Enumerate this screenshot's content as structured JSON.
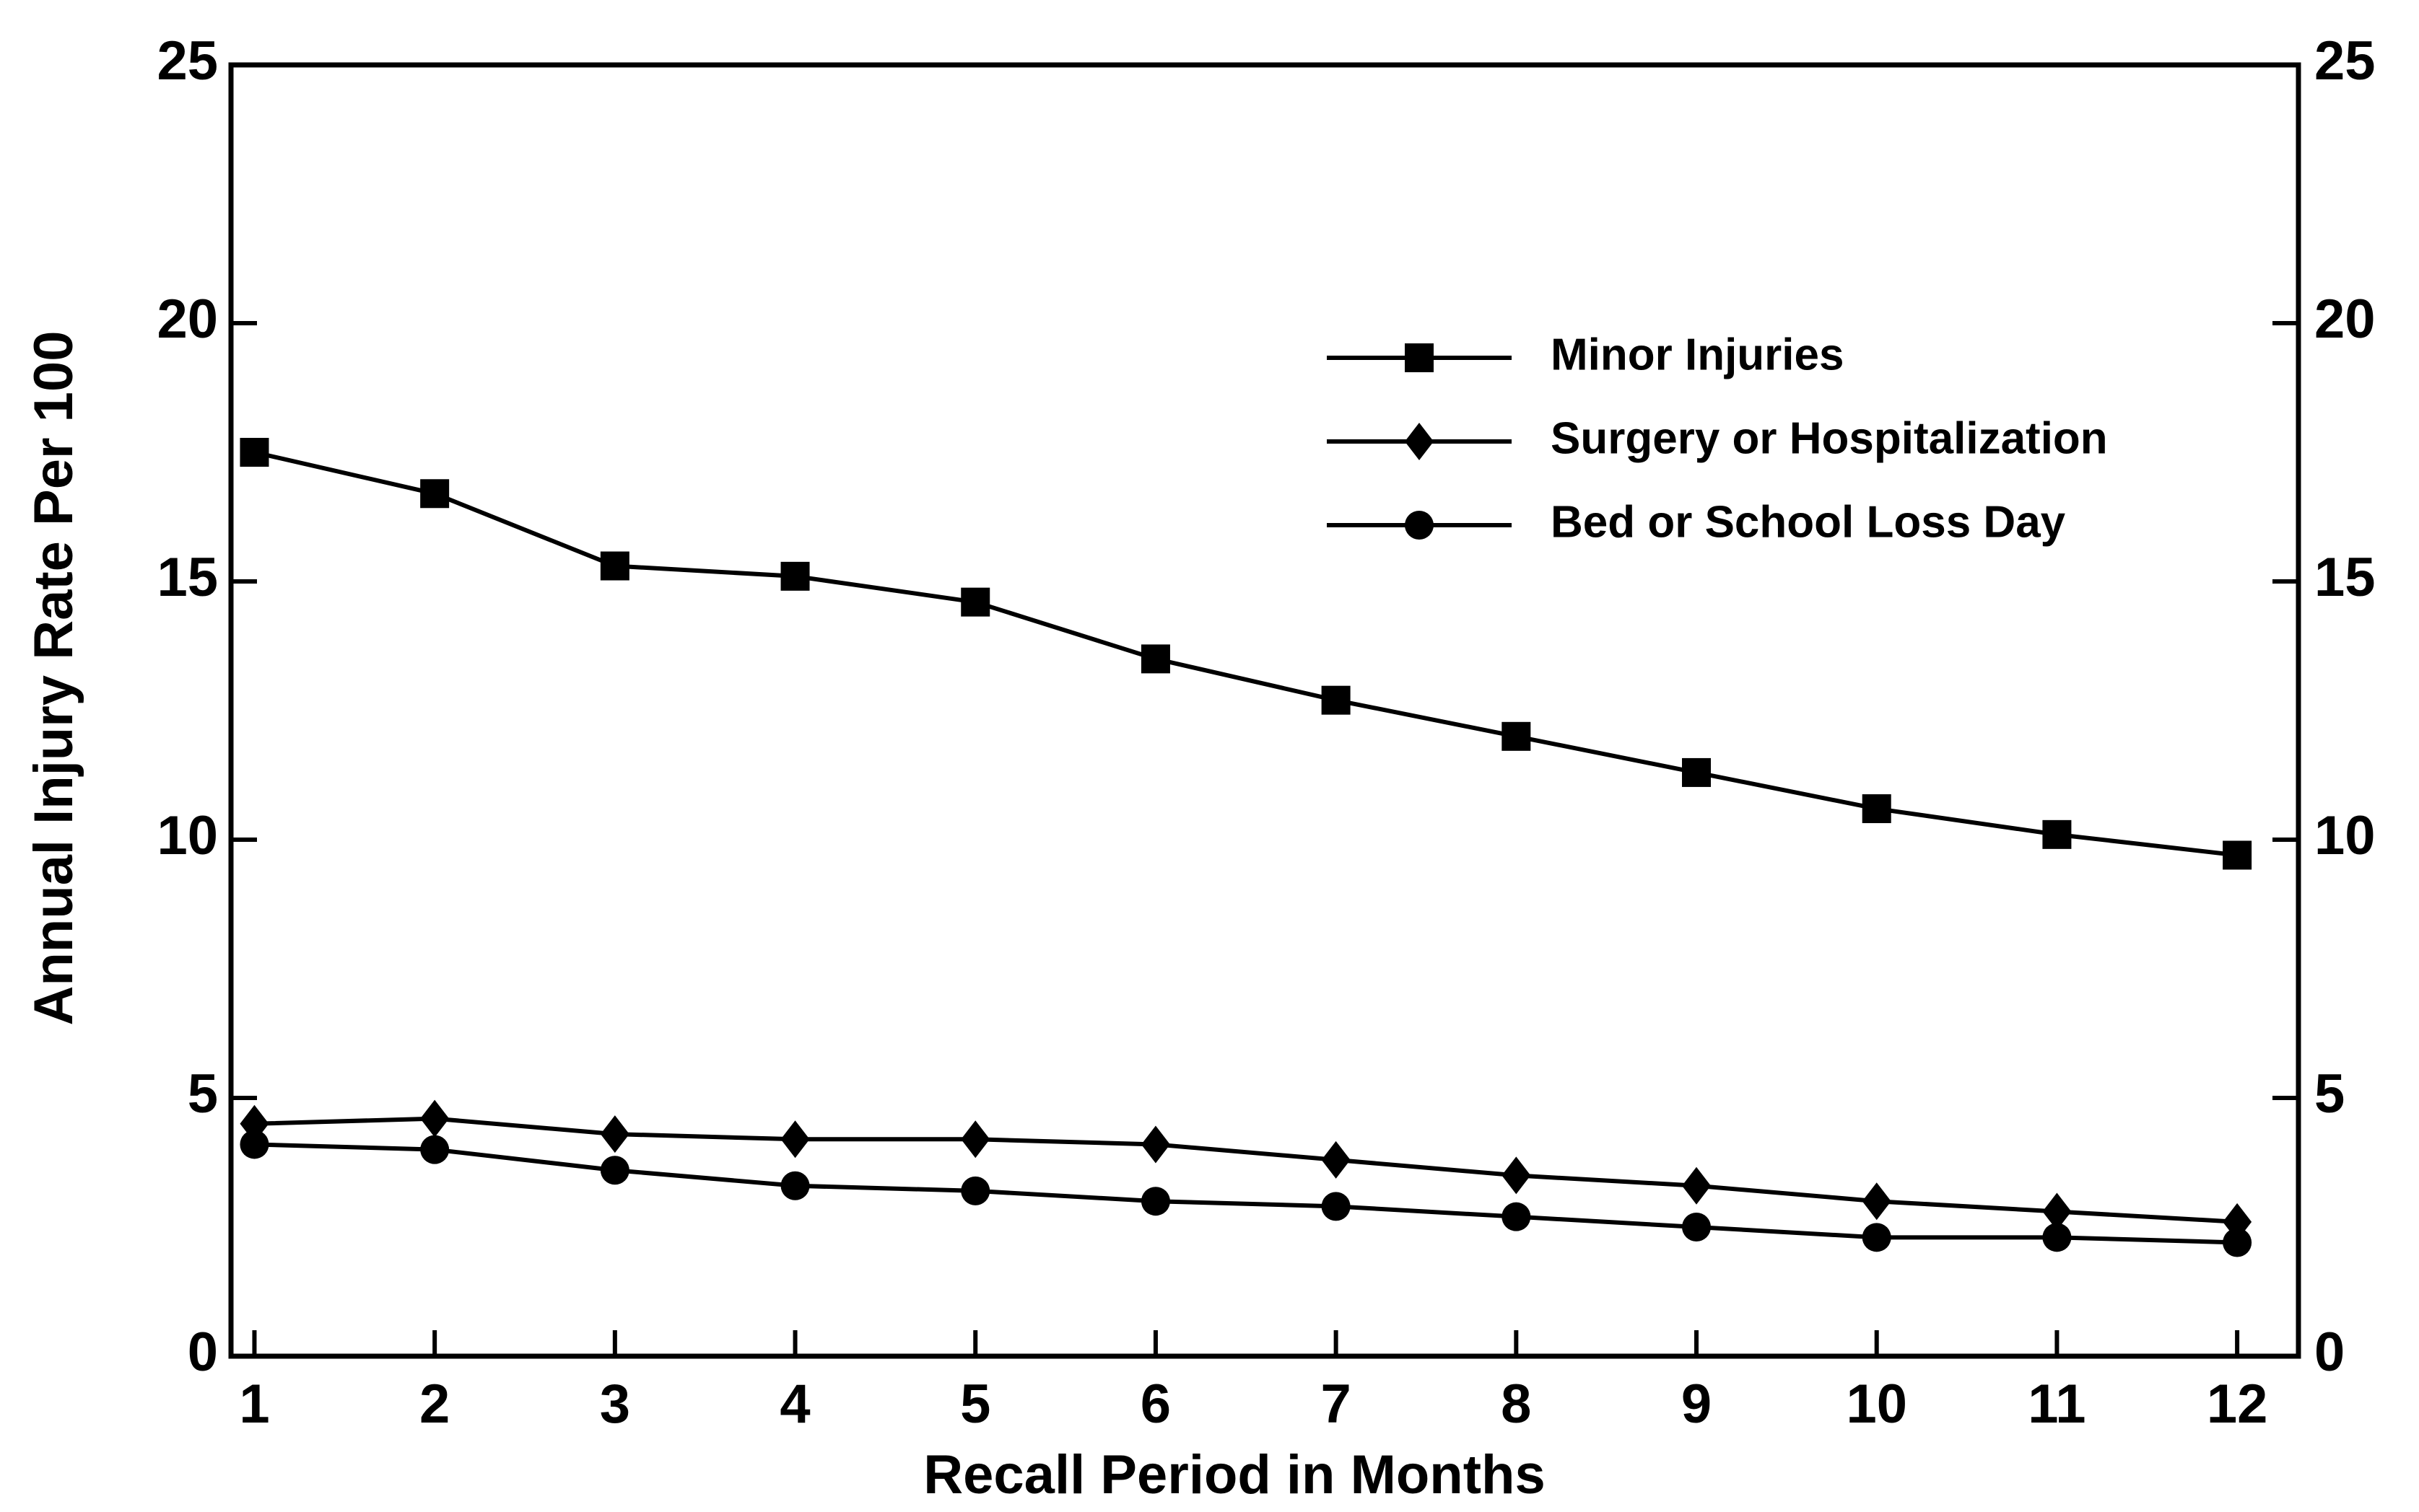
{
  "chart_data": {
    "type": "line",
    "x": [
      1,
      2,
      3,
      4,
      5,
      6,
      7,
      8,
      9,
      10,
      11,
      12
    ],
    "xlim": [
      0.87,
      12.34
    ],
    "xticks": [
      1,
      2,
      3,
      4,
      5,
      6,
      7,
      8,
      9,
      10,
      11,
      12
    ],
    "ylim": [
      0,
      25
    ],
    "yticks": [
      0,
      5,
      10,
      15,
      20,
      25
    ],
    "y2lim": [
      0,
      25
    ],
    "y2ticks": [
      0,
      5,
      10,
      15,
      20,
      25
    ],
    "x_label": "Recall Period in Months",
    "y_label": "Annual Injury Rate Per 100",
    "legend": "upper right",
    "series": [
      {
        "name": "Minor Injuries",
        "color": "#000000",
        "marker": "square",
        "values": [
          17.5,
          16.7,
          15.3,
          15.1,
          14.6,
          13.5,
          12.7,
          12.0,
          11.3,
          10.6,
          10.1,
          9.7
        ]
      },
      {
        "name": "Surgery or Hospitalization",
        "color": "#000000",
        "marker": "diamond",
        "values": [
          4.5,
          4.6,
          4.3,
          4.2,
          4.2,
          4.1,
          3.8,
          3.5,
          3.3,
          3.0,
          2.8,
          2.6
        ]
      },
      {
        "name": "Bed or School Loss Day",
        "color": "#000000",
        "marker": "circle",
        "values": [
          4.1,
          4.0,
          3.6,
          3.3,
          3.2,
          3.0,
          2.9,
          2.7,
          2.5,
          2.3,
          2.3,
          2.2
        ]
      }
    ]
  }
}
